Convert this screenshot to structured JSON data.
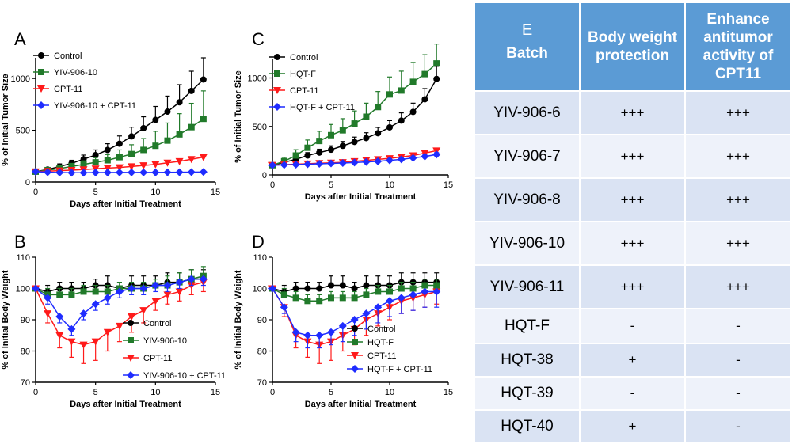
{
  "colors": {
    "control": "#000000",
    "green": "#217a2a",
    "red": "#ff1a1a",
    "blue": "#1f2cff",
    "table_header": "#5b9bd5"
  },
  "chart_data": [
    {
      "panel": "A",
      "type": "line",
      "ylabel": "% of Initial Tumor Size",
      "xlabel": "Days after Initial Treatment",
      "xlim": [
        0,
        15
      ],
      "ylim": [
        0,
        1200
      ],
      "xticks": [
        0,
        5,
        10,
        15
      ],
      "yticks": [
        0,
        500,
        1000
      ],
      "legend_position": "top-left",
      "series": [
        {
          "name": "Control",
          "color": "#000000",
          "marker": "circle",
          "x": [
            0,
            1,
            2,
            3,
            4,
            5,
            6,
            7,
            8,
            9,
            10,
            11,
            12,
            13,
            14
          ],
          "y": [
            100,
            120,
            150,
            180,
            220,
            260,
            310,
            370,
            440,
            520,
            600,
            680,
            770,
            880,
            990
          ],
          "err": [
            0,
            20,
            25,
            30,
            40,
            50,
            60,
            75,
            90,
            110,
            130,
            150,
            170,
            190,
            210
          ]
        },
        {
          "name": "YIV-906-10",
          "color": "#217a2a",
          "marker": "square",
          "x": [
            0,
            1,
            2,
            3,
            4,
            5,
            6,
            7,
            8,
            9,
            10,
            11,
            12,
            13,
            14
          ],
          "y": [
            100,
            115,
            130,
            150,
            170,
            190,
            210,
            240,
            270,
            310,
            350,
            400,
            460,
            530,
            610
          ],
          "err": [
            0,
            15,
            20,
            30,
            35,
            45,
            55,
            70,
            90,
            110,
            140,
            170,
            200,
            230,
            270
          ]
        },
        {
          "name": "CPT-11",
          "color": "#ff1a1a",
          "marker": "triangle-down",
          "x": [
            0,
            1,
            2,
            3,
            4,
            5,
            6,
            7,
            8,
            9,
            10,
            11,
            12,
            13,
            14
          ],
          "y": [
            100,
            105,
            110,
            115,
            120,
            128,
            135,
            140,
            150,
            160,
            170,
            185,
            200,
            220,
            240
          ],
          "err": [
            0,
            10,
            10,
            12,
            12,
            14,
            15,
            15,
            16,
            18,
            18,
            20,
            22,
            24,
            26
          ]
        },
        {
          "name": "YIV-906-10 + CPT-11",
          "color": "#1f2cff",
          "marker": "diamond",
          "x": [
            0,
            1,
            2,
            3,
            4,
            5,
            6,
            7,
            8,
            9,
            10,
            11,
            12,
            13,
            14
          ],
          "y": [
            100,
            95,
            92,
            90,
            90,
            92,
            92,
            93,
            93,
            93,
            93,
            94,
            95,
            96,
            97
          ],
          "err": [
            0,
            8,
            8,
            8,
            8,
            8,
            8,
            8,
            8,
            8,
            8,
            8,
            8,
            8,
            8
          ]
        }
      ]
    },
    {
      "panel": "C",
      "type": "line",
      "ylabel": "% of Initial Tumor Size",
      "xlabel": "Days after Initial Treatment",
      "xlim": [
        0,
        15
      ],
      "ylim": [
        0,
        1200
      ],
      "xticks": [
        0,
        5,
        10,
        15
      ],
      "yticks": [
        0,
        500,
        1000
      ],
      "legend_position": "top-left",
      "series": [
        {
          "name": "Control",
          "color": "#000000",
          "marker": "circle",
          "x": [
            0,
            1,
            2,
            3,
            4,
            5,
            6,
            7,
            8,
            9,
            10,
            11,
            12,
            13,
            14
          ],
          "y": [
            100,
            130,
            160,
            200,
            230,
            260,
            300,
            340,
            380,
            430,
            490,
            560,
            650,
            780,
            990
          ],
          "err": [
            0,
            20,
            25,
            30,
            35,
            40,
            45,
            50,
            55,
            60,
            70,
            80,
            90,
            110,
            130
          ]
        },
        {
          "name": "HQT-F",
          "color": "#217a2a",
          "marker": "square",
          "x": [
            0,
            1,
            2,
            3,
            4,
            5,
            6,
            7,
            8,
            9,
            10,
            11,
            12,
            13,
            14
          ],
          "y": [
            100,
            140,
            200,
            280,
            350,
            410,
            460,
            530,
            600,
            700,
            830,
            870,
            960,
            1040,
            1150
          ],
          "err": [
            0,
            40,
            60,
            80,
            100,
            110,
            120,
            130,
            140,
            160,
            180,
            200,
            200,
            200,
            200
          ]
        },
        {
          "name": "CPT-11",
          "color": "#ff1a1a",
          "marker": "triangle-down",
          "x": [
            0,
            1,
            2,
            3,
            4,
            5,
            6,
            7,
            8,
            9,
            10,
            11,
            12,
            13,
            14
          ],
          "y": [
            100,
            105,
            110,
            115,
            120,
            125,
            130,
            140,
            150,
            160,
            170,
            185,
            200,
            225,
            250
          ],
          "err": [
            0,
            10,
            10,
            12,
            12,
            14,
            15,
            15,
            16,
            18,
            18,
            20,
            22,
            24,
            26
          ]
        },
        {
          "name": "HQT-F + CPT-11",
          "color": "#1f2cff",
          "marker": "diamond",
          "x": [
            0,
            1,
            2,
            3,
            4,
            5,
            6,
            7,
            8,
            9,
            10,
            11,
            12,
            13,
            14
          ],
          "y": [
            100,
            103,
            106,
            110,
            114,
            118,
            122,
            128,
            134,
            140,
            150,
            160,
            175,
            190,
            210
          ],
          "err": [
            0,
            8,
            8,
            10,
            10,
            10,
            12,
            12,
            12,
            14,
            14,
            16,
            18,
            20,
            20
          ]
        }
      ]
    },
    {
      "panel": "B",
      "type": "line",
      "ylabel": "% of Initial  Body Weight",
      "xlabel": "Days after Initial Treatment",
      "xlim": [
        0,
        15
      ],
      "ylim": [
        70,
        110
      ],
      "xticks": [
        0,
        5,
        10,
        15
      ],
      "yticks": [
        70,
        80,
        90,
        100,
        110
      ],
      "legend_position": "bottom-right",
      "series": [
        {
          "name": "Control",
          "color": "#000000",
          "marker": "circle",
          "x": [
            0,
            1,
            2,
            3,
            4,
            5,
            6,
            7,
            8,
            9,
            10,
            11,
            12,
            13,
            14
          ],
          "y": [
            100,
            99,
            100,
            100,
            100,
            101,
            101,
            100,
            101,
            101,
            101,
            102,
            102,
            103,
            103
          ],
          "err": [
            0,
            2,
            2,
            2,
            2,
            2,
            3,
            2,
            3,
            3,
            3,
            3,
            3,
            3,
            3
          ]
        },
        {
          "name": "YIV-906-10",
          "color": "#217a2a",
          "marker": "square",
          "x": [
            0,
            1,
            2,
            3,
            4,
            5,
            6,
            7,
            8,
            9,
            10,
            11,
            12,
            13,
            14
          ],
          "y": [
            100,
            98,
            98,
            98,
            99,
            99,
            99,
            100,
            100,
            100,
            101,
            101,
            102,
            103,
            104
          ],
          "err": [
            0,
            2,
            2,
            2,
            2,
            2,
            2,
            2,
            2,
            2,
            2,
            3,
            3,
            3,
            3
          ]
        },
        {
          "name": "CPT-11",
          "color": "#ff1a1a",
          "marker": "triangle-down",
          "x": [
            0,
            1,
            2,
            3,
            4,
            5,
            6,
            7,
            8,
            9,
            10,
            11,
            12,
            13,
            14
          ],
          "y": [
            100,
            92,
            85,
            83,
            82,
            83,
            86,
            88,
            91,
            93,
            96,
            98,
            99,
            101,
            102
          ],
          "err": [
            0,
            3,
            4,
            5,
            6,
            6,
            6,
            5,
            5,
            4,
            3,
            3,
            3,
            3,
            3
          ]
        },
        {
          "name": "YIV-906-10 + CPT-11",
          "color": "#1f2cff",
          "marker": "diamond",
          "x": [
            0,
            1,
            2,
            3,
            4,
            5,
            6,
            7,
            8,
            9,
            10,
            11,
            12,
            13,
            14
          ],
          "y": [
            100,
            97,
            91,
            87,
            92,
            95,
            97,
            99,
            100,
            100,
            101,
            101,
            102,
            103,
            103
          ],
          "err": [
            0,
            2,
            2,
            2,
            2,
            2,
            2,
            2,
            2,
            2,
            2,
            2,
            2,
            2,
            2
          ]
        }
      ]
    },
    {
      "panel": "D",
      "type": "line",
      "ylabel": "% of Initial  Body Weight",
      "xlabel": "Days after Initial Treatment",
      "xlim": [
        0,
        15
      ],
      "ylim": [
        70,
        110
      ],
      "xticks": [
        0,
        5,
        10,
        15
      ],
      "yticks": [
        70,
        80,
        90,
        100,
        110
      ],
      "legend_position": "bottom-right",
      "series": [
        {
          "name": "Control",
          "color": "#000000",
          "marker": "circle",
          "x": [
            0,
            1,
            2,
            3,
            4,
            5,
            6,
            7,
            8,
            9,
            10,
            11,
            12,
            13,
            14
          ],
          "y": [
            100,
            99,
            100,
            100,
            100,
            101,
            101,
            100,
            101,
            101,
            101,
            102,
            102,
            102,
            102
          ],
          "err": [
            0,
            2,
            2,
            2,
            2,
            3,
            3,
            2,
            3,
            3,
            3,
            3,
            3,
            3,
            3
          ]
        },
        {
          "name": "HQT-F",
          "color": "#217a2a",
          "marker": "square",
          "x": [
            0,
            1,
            2,
            3,
            4,
            5,
            6,
            7,
            8,
            9,
            10,
            11,
            12,
            13,
            14
          ],
          "y": [
            100,
            98,
            97,
            96,
            96,
            97,
            97,
            97,
            98,
            99,
            99,
            100,
            100,
            101,
            101
          ],
          "err": [
            0,
            2,
            2,
            2,
            2,
            2,
            2,
            2,
            2,
            2,
            2,
            2,
            2,
            2,
            2
          ]
        },
        {
          "name": "CPT-11",
          "color": "#ff1a1a",
          "marker": "triangle-down",
          "x": [
            0,
            1,
            2,
            3,
            4,
            5,
            6,
            7,
            8,
            9,
            10,
            11,
            12,
            13,
            14
          ],
          "y": [
            100,
            94,
            85,
            83,
            82,
            83,
            85,
            87,
            90,
            92,
            94,
            96,
            97,
            98,
            99
          ],
          "err": [
            0,
            3,
            4,
            5,
            6,
            6,
            5,
            5,
            5,
            4,
            4,
            4,
            4,
            4,
            4
          ]
        },
        {
          "name": "HQT-F + CPT-11",
          "color": "#1f2cff",
          "marker": "diamond",
          "x": [
            0,
            1,
            2,
            3,
            4,
            5,
            6,
            7,
            8,
            9,
            10,
            11,
            12,
            13,
            14
          ],
          "y": [
            100,
            94,
            86,
            85,
            85,
            86,
            88,
            90,
            92,
            94,
            96,
            97,
            98,
            99,
            99
          ],
          "err": [
            0,
            2,
            3,
            4,
            4,
            4,
            5,
            5,
            5,
            5,
            5,
            5,
            5,
            5,
            5
          ]
        }
      ]
    }
  ],
  "table": {
    "panel_label": "E",
    "headers": [
      "Batch",
      "Body weight protection",
      "Enhance antitumor activity of CPT11"
    ],
    "rows": [
      {
        "batch": "YIV-906-6",
        "body": "+++",
        "enhance": "+++"
      },
      {
        "batch": "YIV-906-7",
        "body": "+++",
        "enhance": "+++"
      },
      {
        "batch": "YIV-906-8",
        "body": "+++",
        "enhance": "+++"
      },
      {
        "batch": "YIV-906-10",
        "body": "+++",
        "enhance": "+++"
      },
      {
        "batch": "YIV-906-11",
        "body": "+++",
        "enhance": "+++"
      },
      {
        "batch": "HQT-F",
        "body": "-",
        "enhance": "-"
      },
      {
        "batch": "HQT-38",
        "body": "+",
        "enhance": "-"
      },
      {
        "batch": "HQT-39",
        "body": "-",
        "enhance": "-"
      },
      {
        "batch": "HQT-40",
        "body": "+",
        "enhance": "-"
      }
    ]
  }
}
